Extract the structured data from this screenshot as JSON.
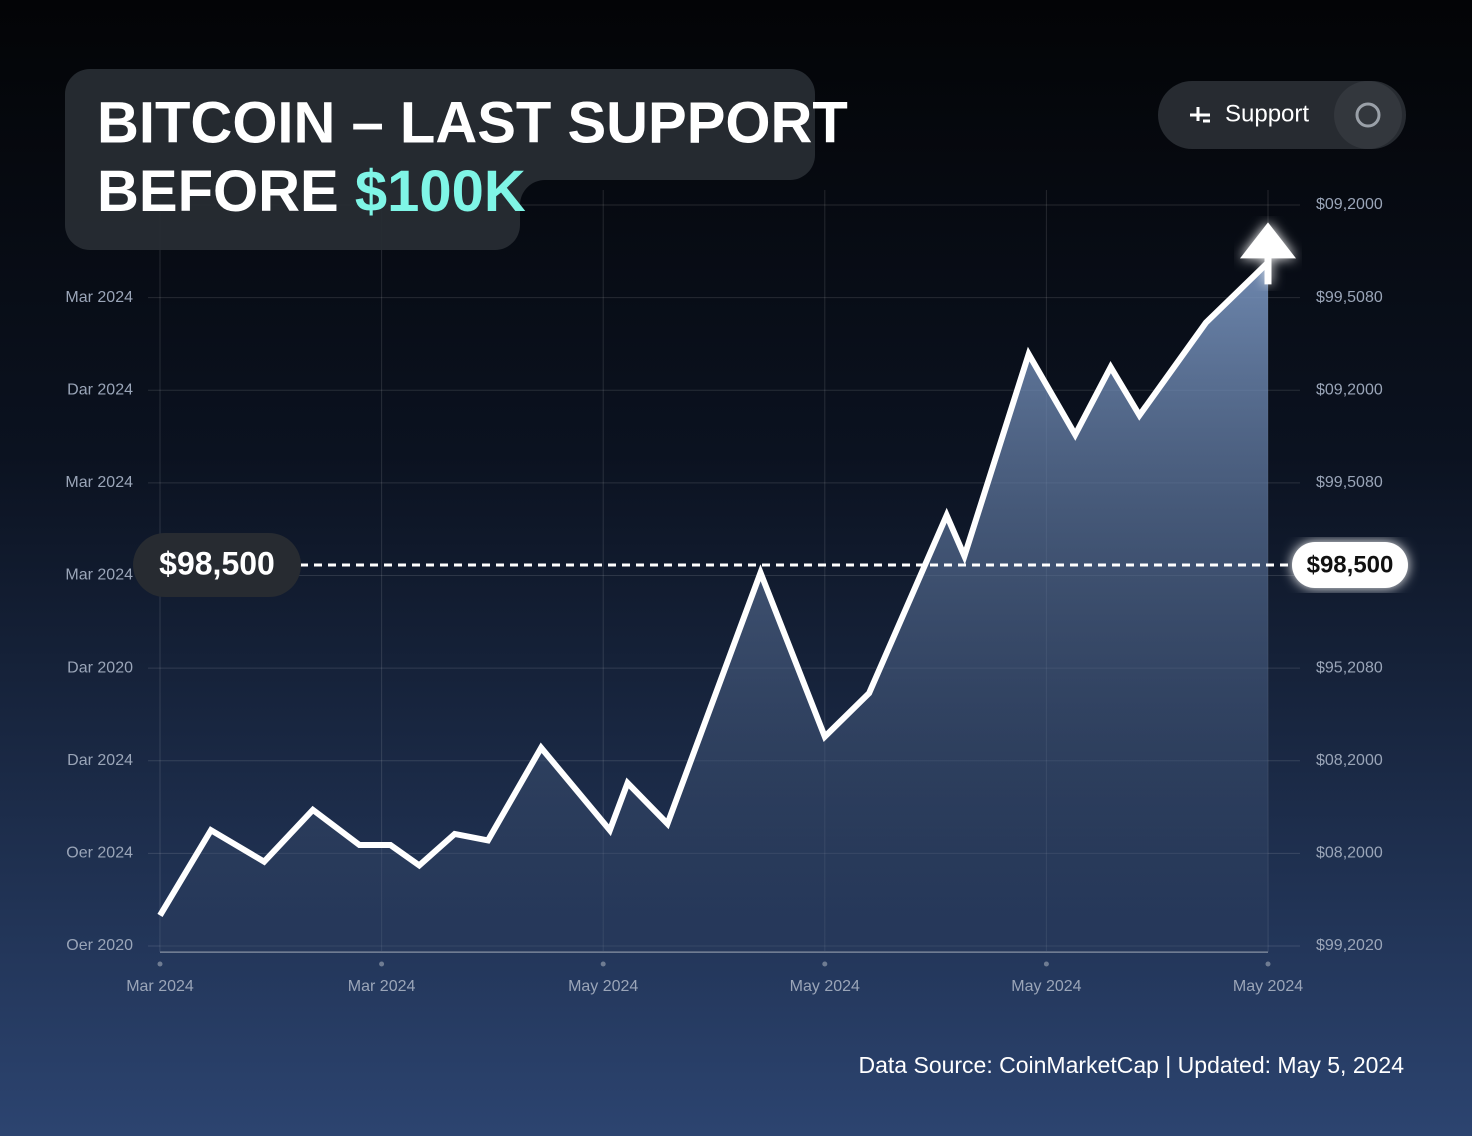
{
  "chart_data": {
    "type": "line",
    "title_line1": "BITCOIN – LAST SUPPORT",
    "title_line2": "BEFORE",
    "title_highlight": "$100K",
    "button": "Support",
    "support_label": "$98,500",
    "footer": "Data Source: CoinMarketCap | Updated: May 5, 2024",
    "x": [
      0,
      0.23,
      0.47,
      0.69,
      0.9,
      1.04,
      1.17,
      1.33,
      1.48,
      1.72,
      2.03,
      2.11,
      2.29,
      2.71,
      3.0,
      3.2,
      3.55,
      3.63,
      3.92,
      4.13,
      4.29,
      4.42,
      4.72,
      5.0
    ],
    "values": [
      0.33,
      1.25,
      0.91,
      1.47,
      1.09,
      1.09,
      0.87,
      1.21,
      1.14,
      2.14,
      1.25,
      1.76,
      1.32,
      4.03,
      2.26,
      2.73,
      4.65,
      4.21,
      6.39,
      5.52,
      6.25,
      5.73,
      6.73,
      7.38
    ],
    "color": "#ffffff",
    "highlight_color": "#7ff5e6",
    "xlim": [
      0,
      5
    ],
    "xticks": [
      {
        "value": 0,
        "label": "Mar 2024"
      },
      {
        "value": 1,
        "label": "Mar 2024"
      },
      {
        "value": 2,
        "label": "May 2024"
      },
      {
        "value": 3,
        "label": "May 2024"
      },
      {
        "value": 4,
        "label": "May 2024"
      },
      {
        "value": 5,
        "label": "May 2024"
      }
    ],
    "ylim": [
      0,
      8
    ],
    "yticks": [
      {
        "value": 7,
        "label": "Mar 2024"
      },
      {
        "value": 6,
        "label": "Dar 2024"
      },
      {
        "value": 5,
        "label": "Mar 2024"
      },
      {
        "value": 4,
        "label": "Mar 2024"
      },
      {
        "value": 3,
        "label": "Dar 2020"
      },
      {
        "value": 2,
        "label": "Dar 2024"
      },
      {
        "value": 1,
        "label": "Oer 2024"
      },
      {
        "value": 0,
        "label": "Oer 2020"
      }
    ],
    "y2ticks": [
      {
        "value": 8,
        "label": "$09,2000"
      },
      {
        "value": 7,
        "label": "$99,5080"
      },
      {
        "value": 6,
        "label": "$09,2000"
      },
      {
        "value": 5,
        "label": "$99,5080"
      },
      {
        "value": 3,
        "label": "$95,2080"
      },
      {
        "value": 2,
        "label": "$08,2000"
      },
      {
        "value": 1,
        "label": "$08,2000"
      },
      {
        "value": 0,
        "label": "$99,2020"
      }
    ],
    "grid": true
  }
}
